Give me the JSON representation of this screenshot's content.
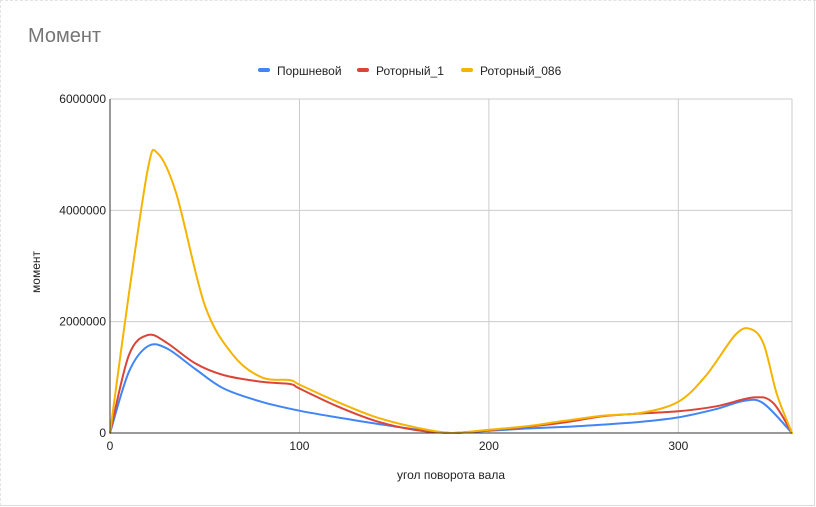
{
  "chart_data": {
    "type": "line",
    "title": "Момент",
    "xlabel": "угол поворота вала",
    "ylabel": "момент",
    "xlim": [
      0,
      360
    ],
    "ylim": [
      0,
      6000000
    ],
    "x_ticks": [
      "0",
      "100",
      "200",
      "300"
    ],
    "x_tick_values": [
      0,
      100,
      200,
      300
    ],
    "y_ticks": [
      "0",
      "2000000",
      "4000000",
      "6000000"
    ],
    "y_tick_values": [
      0,
      2000000,
      4000000,
      6000000
    ],
    "grid": true,
    "legend_position": "top",
    "series": [
      {
        "name": "Поршневой",
        "color": "#4285f4",
        "x": [
          0,
          10,
          20,
          30,
          45,
          60,
          80,
          100,
          120,
          140,
          160,
          180,
          200,
          220,
          240,
          260,
          280,
          300,
          320,
          335,
          345,
          360
        ],
        "y": [
          0,
          1100000,
          1560000,
          1520000,
          1150000,
          800000,
          560000,
          400000,
          280000,
          170000,
          70000,
          0,
          40000,
          80000,
          110000,
          150000,
          200000,
          280000,
          430000,
          580000,
          530000,
          0
        ]
      },
      {
        "name": "Роторный_1",
        "color": "#db4437",
        "x": [
          0,
          10,
          20,
          30,
          45,
          60,
          80,
          95,
          100,
          120,
          140,
          160,
          180,
          200,
          220,
          240,
          260,
          280,
          300,
          320,
          340,
          350,
          360
        ],
        "y": [
          0,
          1400000,
          1760000,
          1620000,
          1250000,
          1040000,
          920000,
          880000,
          800000,
          480000,
          220000,
          60000,
          0,
          50000,
          110000,
          190000,
          300000,
          350000,
          390000,
          480000,
          640000,
          540000,
          0
        ]
      },
      {
        "name": "Роторный_086",
        "color": "#f4b400",
        "x": [
          0,
          10,
          20,
          25,
          35,
          50,
          65,
          80,
          95,
          100,
          120,
          140,
          160,
          180,
          200,
          220,
          240,
          260,
          280,
          300,
          315,
          330,
          338,
          345,
          352,
          360
        ],
        "y": [
          0,
          2500000,
          4750000,
          5030000,
          4300000,
          2300000,
          1400000,
          1000000,
          950000,
          870000,
          560000,
          290000,
          110000,
          0,
          60000,
          120000,
          220000,
          310000,
          360000,
          560000,
          1050000,
          1760000,
          1870000,
          1600000,
          700000,
          0
        ]
      }
    ]
  }
}
